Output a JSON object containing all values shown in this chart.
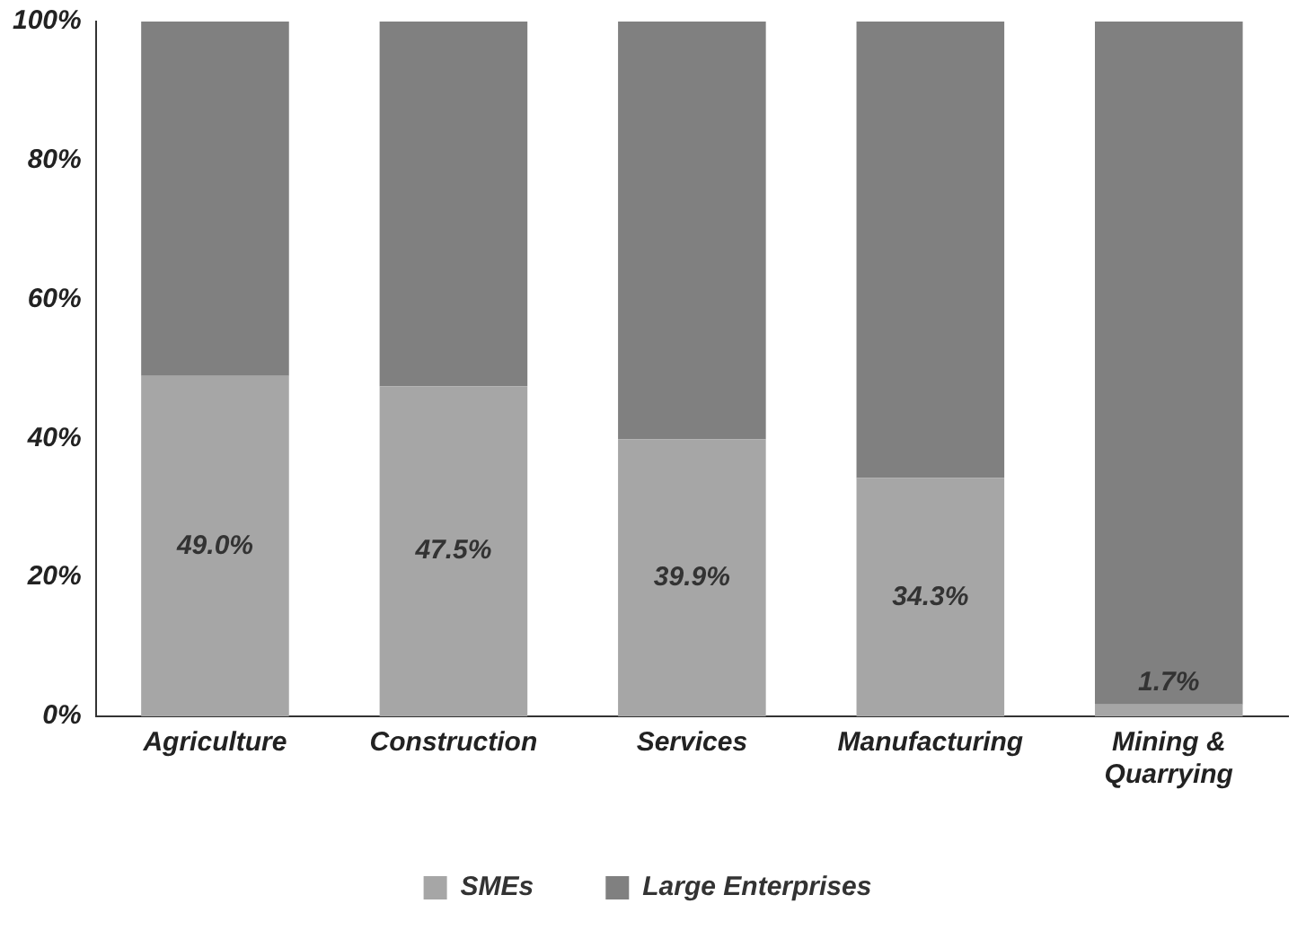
{
  "chart_data": {
    "type": "bar",
    "stacked": true,
    "categories": [
      "Agriculture",
      "Construction",
      "Services",
      "Manufacturing",
      "Mining & Quarrying"
    ],
    "series": [
      {
        "name": "SMEs",
        "color": "#a6a6a6",
        "values": [
          49.0,
          47.5,
          39.9,
          34.3,
          1.7
        ],
        "value_labels": [
          "49.0%",
          "47.5%",
          "39.9%",
          "34.3%",
          "1.7%"
        ]
      },
      {
        "name": "Large Enterprises",
        "color": "#808080",
        "values": [
          51.0,
          52.5,
          60.1,
          65.7,
          98.3
        ]
      }
    ],
    "ylim": [
      0,
      100
    ],
    "yticks": [
      {
        "value": 0,
        "label": "0%"
      },
      {
        "value": 20,
        "label": "20%"
      },
      {
        "value": 40,
        "label": "40%"
      },
      {
        "value": 60,
        "label": "60%"
      },
      {
        "value": 80,
        "label": "80%"
      },
      {
        "value": 100,
        "label": "100%"
      }
    ],
    "grid": false,
    "legend": "bottom"
  }
}
